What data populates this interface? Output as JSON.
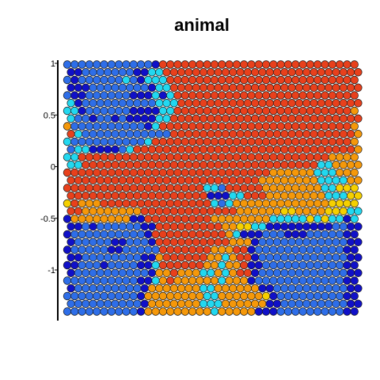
{
  "chart_data": {
    "type": "heatmap",
    "title": "animal",
    "xlabel": "",
    "ylabel": "",
    "ylim": [
      -1.45,
      1.0
    ],
    "y_ticks": [
      {
        "value": 1,
        "label": "1"
      },
      {
        "value": 0.5,
        "label": "0.5"
      },
      {
        "value": 0,
        "label": "0"
      },
      {
        "value": -0.5,
        "label": "-0.5"
      },
      {
        "value": -1,
        "label": "-1"
      }
    ],
    "grid": false,
    "legend": "none",
    "grid_shape": {
      "cols": 40,
      "rows": 33
    },
    "class_colors": {
      "0": "#1010c8",
      "1": "#2e6ee8",
      "2": "#22d8f0",
      "3": "#f5d000",
      "4": "#f5980a",
      "5": "#e8401c",
      "6": "#d12c10"
    },
    "cells": [
      "1111111111110555555555555555555555555555",
      "0011111110022555555555555555555555555555",
      "1011111121022255555555555555555555555555",
      "0001111111102255555555555555555555555555",
      "1001111110002025555555555555555555555555",
      "2011111111112225555555555555555555555555",
      "2201111110000225555555555555555555555554",
      "2110110100002255555555555555555555555555",
      "4111111111102555555555555555555555555554",
      "5211111111111155555555555555555555555554",
      "2111111111125555555555555555555555555554",
      "1220000125555555555555555555555555555554",
      "2255555555555555555555555555555555554444",
      "2255555555555555555555555555555555224444",
      "5555555555555555555555555555444444222444",
      "5555555555555555555555555544444444222244",
      "5555555555555555555221555554444444422333",
      "5555555555555555555000225554444444422233",
      "3544455555555555555521244444444444443333",
      "5544444444555555555555544444433444433322",
      "0444444440055555555544444444222223232202",
      "0010111111005555555554433220000000001100",
      "0111111111105555555555420001110001111100",
      "0111110011105555555555444011111111111100",
      "0111110011111555555544455011111111111100",
      "0011111111004555555442455011111111111100",
      "0011101111002555555442445001111111111100",
      "0111111111104454442242455011111111111100",
      "1111111111002454444442444011111111111100",
      "0111111111044444442244444400111111111100",
      "1111111111044444444224444443011111111100",
      "1111111111044444442224444440011111111100",
      "1111111111044444444424444400011111111100"
    ]
  }
}
